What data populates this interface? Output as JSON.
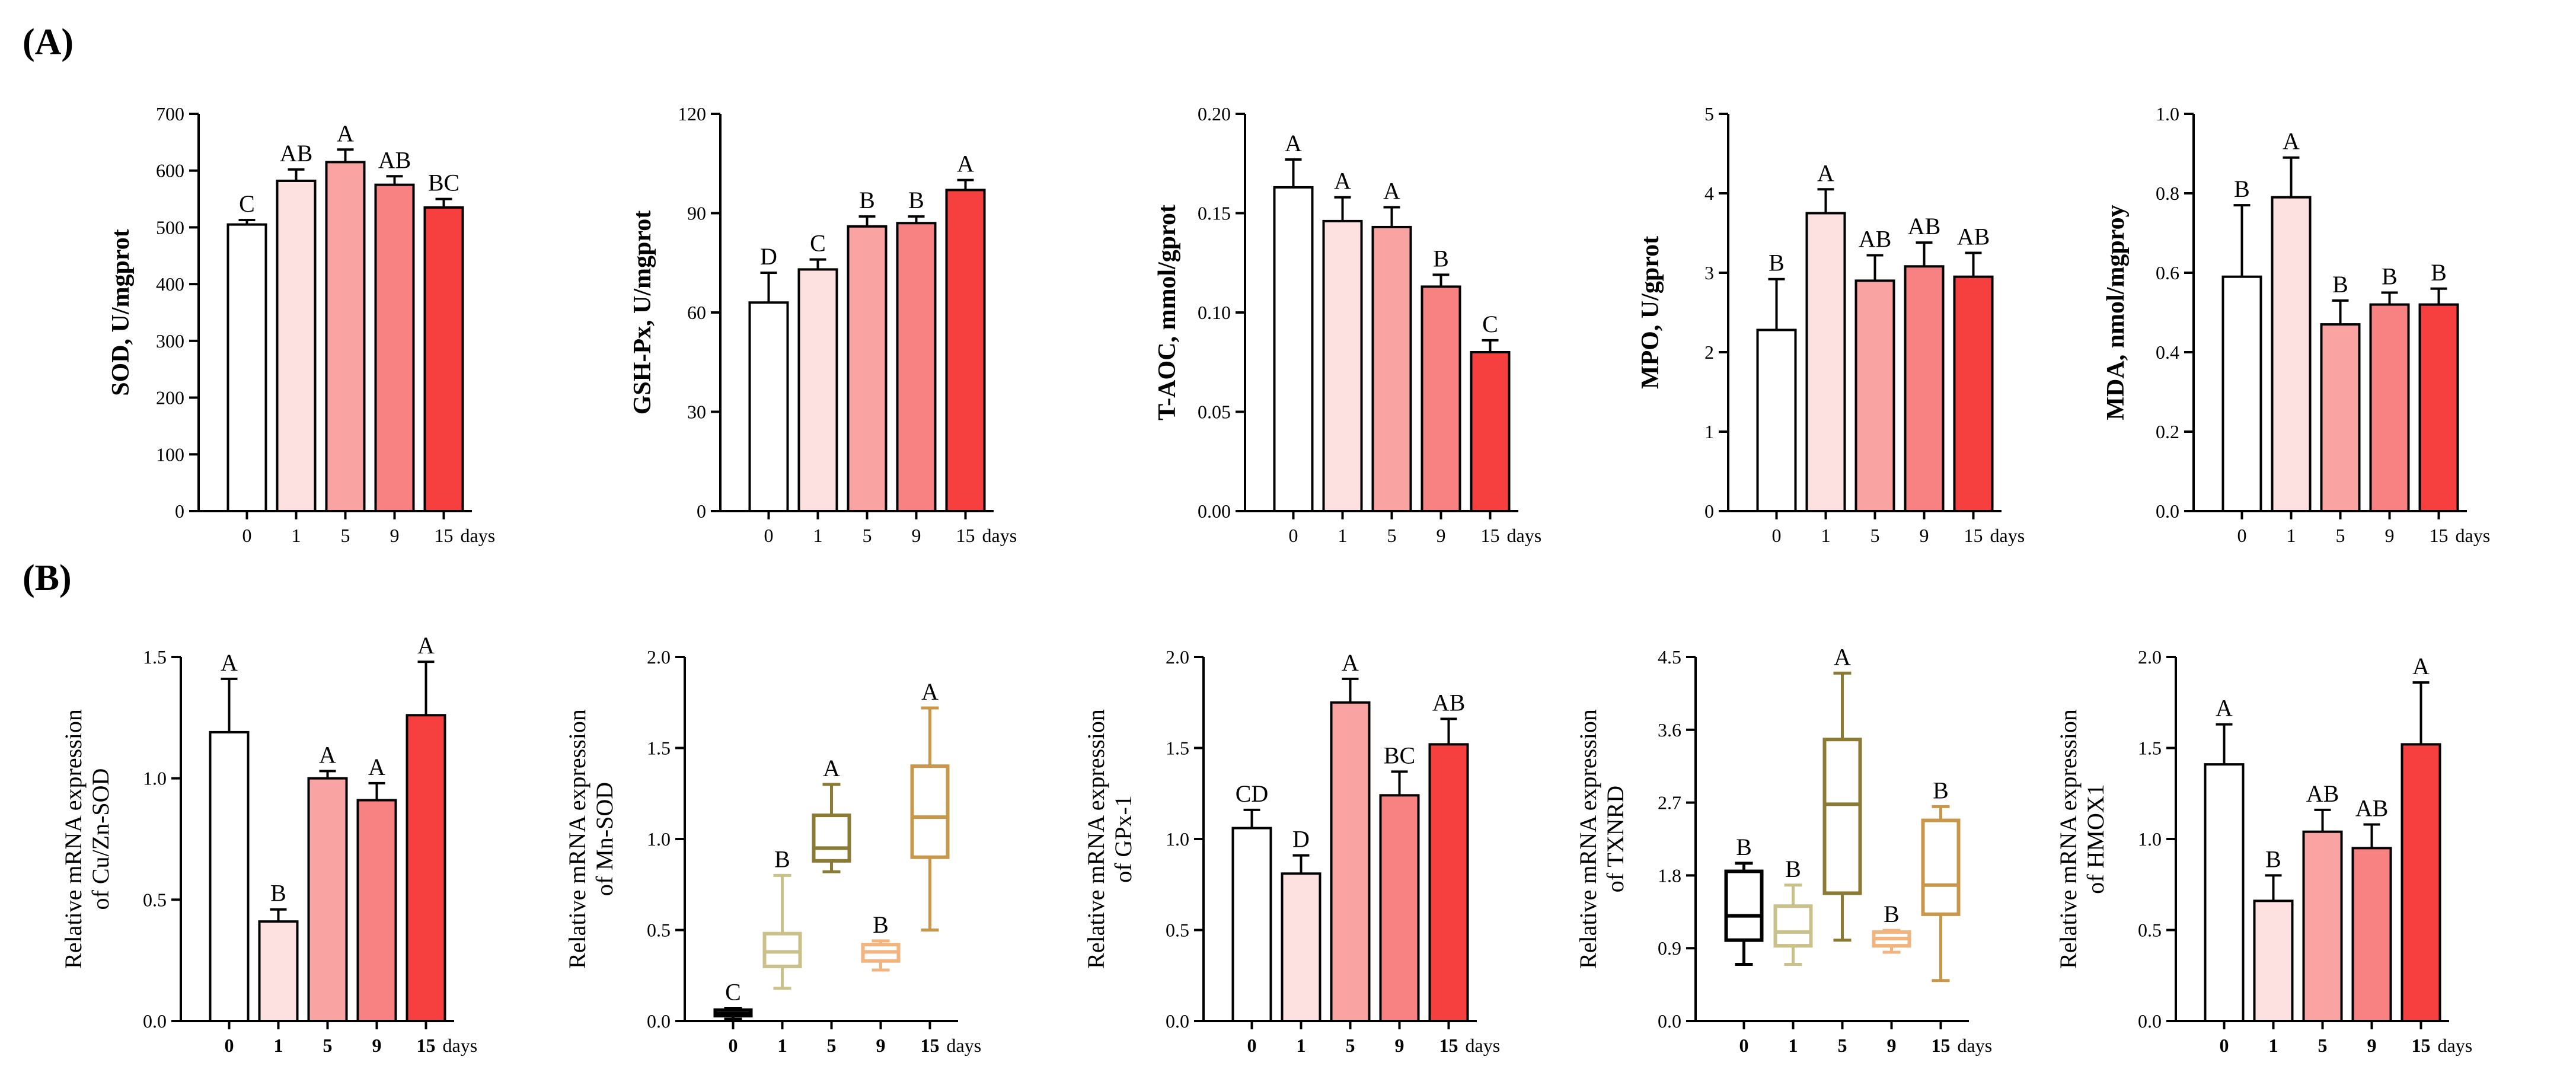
{
  "panel_labels": {
    "a": "(A)",
    "b": "(B)"
  },
  "colors": {
    "day0": "#ffffff",
    "day1": "#fde1e1",
    "day5": "#f9a3a3",
    "day9": "#f88282",
    "day15": "#f63f3f",
    "box0": "#000000",
    "box1": "#c9c08a",
    "box5": "#8b7a33",
    "box9": "#f2b47f",
    "box15": "#c9974a"
  },
  "chart_data": [
    {
      "type": "bar",
      "panel": "A",
      "ylabel": "SOD, U/mgprot",
      "categories": [
        "0",
        "1",
        "5",
        "9",
        "15"
      ],
      "unit": "days",
      "values": [
        505,
        582,
        615,
        575,
        535
      ],
      "errors": [
        8,
        20,
        22,
        15,
        15
      ],
      "letters": [
        "C",
        "AB",
        "A",
        "AB",
        "BC"
      ],
      "ylim": [
        0,
        700
      ],
      "yticks": [
        0,
        100,
        200,
        300,
        400,
        500,
        600,
        700
      ]
    },
    {
      "type": "bar",
      "panel": "A",
      "ylabel": "GSH-Px, U/mgprot",
      "categories": [
        "0",
        "1",
        "5",
        "9",
        "15"
      ],
      "unit": "days",
      "values": [
        63,
        73,
        86,
        87,
        97
      ],
      "errors": [
        9,
        3,
        3,
        2,
        3
      ],
      "letters": [
        "D",
        "C",
        "B",
        "B",
        "A"
      ],
      "ylim": [
        0,
        120
      ],
      "yticks": [
        0,
        30,
        60,
        90,
        120
      ]
    },
    {
      "type": "bar",
      "panel": "A",
      "ylabel": "T-AOC, mmol/gprot",
      "categories": [
        "0",
        "1",
        "5",
        "9",
        "15"
      ],
      "unit": "days",
      "values": [
        0.163,
        0.146,
        0.143,
        0.113,
        0.08
      ],
      "errors": [
        0.014,
        0.012,
        0.01,
        0.006,
        0.006
      ],
      "letters": [
        "A",
        "A",
        "A",
        "B",
        "C"
      ],
      "ylim": [
        0,
        0.2
      ],
      "yticks": [
        0,
        0.05,
        0.1,
        0.15,
        0.2
      ],
      "ytick_labels": [
        "0.00",
        "0.05",
        "0.10",
        "0.15",
        "0.20"
      ]
    },
    {
      "type": "bar",
      "panel": "A",
      "ylabel": "MPO, U/gprot",
      "categories": [
        "0",
        "1",
        "5",
        "9",
        "15"
      ],
      "unit": "days",
      "values": [
        2.28,
        3.75,
        2.9,
        3.08,
        2.95
      ],
      "errors": [
        0.64,
        0.3,
        0.32,
        0.3,
        0.3
      ],
      "letters": [
        "B",
        "A",
        "AB",
        "AB",
        "AB"
      ],
      "ylim": [
        0,
        5
      ],
      "yticks": [
        0,
        1,
        2,
        3,
        4,
        5
      ]
    },
    {
      "type": "bar",
      "panel": "A",
      "ylabel": "MDA, nmol/mgproy",
      "categories": [
        "0",
        "1",
        "5",
        "9",
        "15"
      ],
      "unit": "days",
      "values": [
        0.59,
        0.79,
        0.47,
        0.52,
        0.52
      ],
      "errors": [
        0.18,
        0.1,
        0.06,
        0.03,
        0.04
      ],
      "letters": [
        "B",
        "A",
        "B",
        "B",
        "B"
      ],
      "ylim": [
        0,
        1.0
      ],
      "yticks": [
        0,
        0.2,
        0.4,
        0.6,
        0.8,
        1.0
      ],
      "ytick_labels": [
        "0.0",
        "0.2",
        "0.4",
        "0.6",
        "0.8",
        "1.0"
      ]
    },
    {
      "type": "bar",
      "panel": "B",
      "ylabel": "Relative mRNA expression of Cu/Zn-SOD",
      "categories": [
        "0",
        "1",
        "5",
        "9",
        "15"
      ],
      "unit": "days",
      "values": [
        1.19,
        0.41,
        1.0,
        0.91,
        1.26
      ],
      "errors": [
        0.22,
        0.05,
        0.03,
        0.07,
        0.22
      ],
      "letters": [
        "A",
        "B",
        "A",
        "A",
        "A"
      ],
      "ylim": [
        0,
        1.5
      ],
      "yticks": [
        0,
        0.5,
        1.0,
        1.5
      ],
      "ytick_labels": [
        "0.0",
        "0.5",
        "1.0",
        "1.5"
      ]
    },
    {
      "type": "box",
      "panel": "B",
      "ylabel": "Relative mRNA expression of Mn-SOD",
      "categories": [
        "0",
        "1",
        "5",
        "9",
        "15"
      ],
      "unit": "days",
      "boxes": [
        {
          "min": 0.01,
          "q1": 0.03,
          "median": 0.04,
          "q3": 0.06,
          "max": 0.07
        },
        {
          "min": 0.18,
          "q1": 0.3,
          "median": 0.38,
          "q3": 0.48,
          "max": 0.8
        },
        {
          "min": 0.82,
          "q1": 0.88,
          "median": 0.95,
          "q3": 1.13,
          "max": 1.3
        },
        {
          "min": 0.28,
          "q1": 0.33,
          "median": 0.38,
          "q3": 0.42,
          "max": 0.44
        },
        {
          "min": 0.5,
          "q1": 0.9,
          "median": 1.12,
          "q3": 1.4,
          "max": 1.72
        }
      ],
      "letters": [
        "C",
        "B",
        "A",
        "B",
        "A"
      ],
      "ylim": [
        0,
        2.0
      ],
      "yticks": [
        0,
        0.5,
        1.0,
        1.5,
        2.0
      ],
      "ytick_labels": [
        "0.0",
        "0.5",
        "1.0",
        "1.5",
        "2.0"
      ]
    },
    {
      "type": "bar",
      "panel": "B",
      "ylabel": "Relative mRNA expression of GPx-1",
      "categories": [
        "0",
        "1",
        "5",
        "9",
        "15"
      ],
      "unit": "days",
      "values": [
        1.06,
        0.81,
        1.75,
        1.24,
        1.52
      ],
      "errors": [
        0.1,
        0.1,
        0.13,
        0.13,
        0.14
      ],
      "letters": [
        "CD",
        "D",
        "A",
        "BC",
        "AB"
      ],
      "ylim": [
        0,
        2.0
      ],
      "yticks": [
        0,
        0.5,
        1.0,
        1.5,
        2.0
      ],
      "ytick_labels": [
        "0.0",
        "0.5",
        "1.0",
        "1.5",
        "2.0"
      ]
    },
    {
      "type": "box",
      "panel": "B",
      "ylabel": "Relative mRNA expression of TXNRD",
      "categories": [
        "0",
        "1",
        "5",
        "9",
        "15"
      ],
      "unit": "days",
      "boxes": [
        {
          "min": 0.7,
          "q1": 1.0,
          "median": 1.3,
          "q3": 1.85,
          "max": 1.95
        },
        {
          "min": 0.7,
          "q1": 0.93,
          "median": 1.1,
          "q3": 1.42,
          "max": 1.68
        },
        {
          "min": 1.0,
          "q1": 1.58,
          "median": 2.68,
          "q3": 3.48,
          "max": 4.3
        },
        {
          "min": 0.85,
          "q1": 0.93,
          "median": 1.02,
          "q3": 1.1,
          "max": 1.12
        },
        {
          "min": 0.5,
          "q1": 1.32,
          "median": 1.68,
          "q3": 2.48,
          "max": 2.65
        }
      ],
      "letters": [
        "B",
        "B",
        "A",
        "B",
        "B"
      ],
      "ylim": [
        0,
        4.5
      ],
      "yticks": [
        0,
        0.9,
        1.8,
        2.7,
        3.6,
        4.5
      ],
      "ytick_labels": [
        "0.0",
        "0.9",
        "1.8",
        "2.7",
        "3.6",
        "4.5"
      ]
    },
    {
      "type": "bar",
      "panel": "B",
      "ylabel": "Relative mRNA expression of HMOX1",
      "categories": [
        "0",
        "1",
        "5",
        "9",
        "15"
      ],
      "unit": "days",
      "values": [
        1.41,
        0.66,
        1.04,
        0.95,
        1.52
      ],
      "errors": [
        0.22,
        0.14,
        0.12,
        0.13,
        0.34
      ],
      "letters": [
        "A",
        "B",
        "AB",
        "AB",
        "A"
      ],
      "ylim": [
        0,
        2.0
      ],
      "yticks": [
        0,
        0.5,
        1.0,
        1.5,
        2.0
      ],
      "ytick_labels": [
        "0.0",
        "0.5",
        "1.0",
        "1.5",
        "2.0"
      ]
    }
  ]
}
